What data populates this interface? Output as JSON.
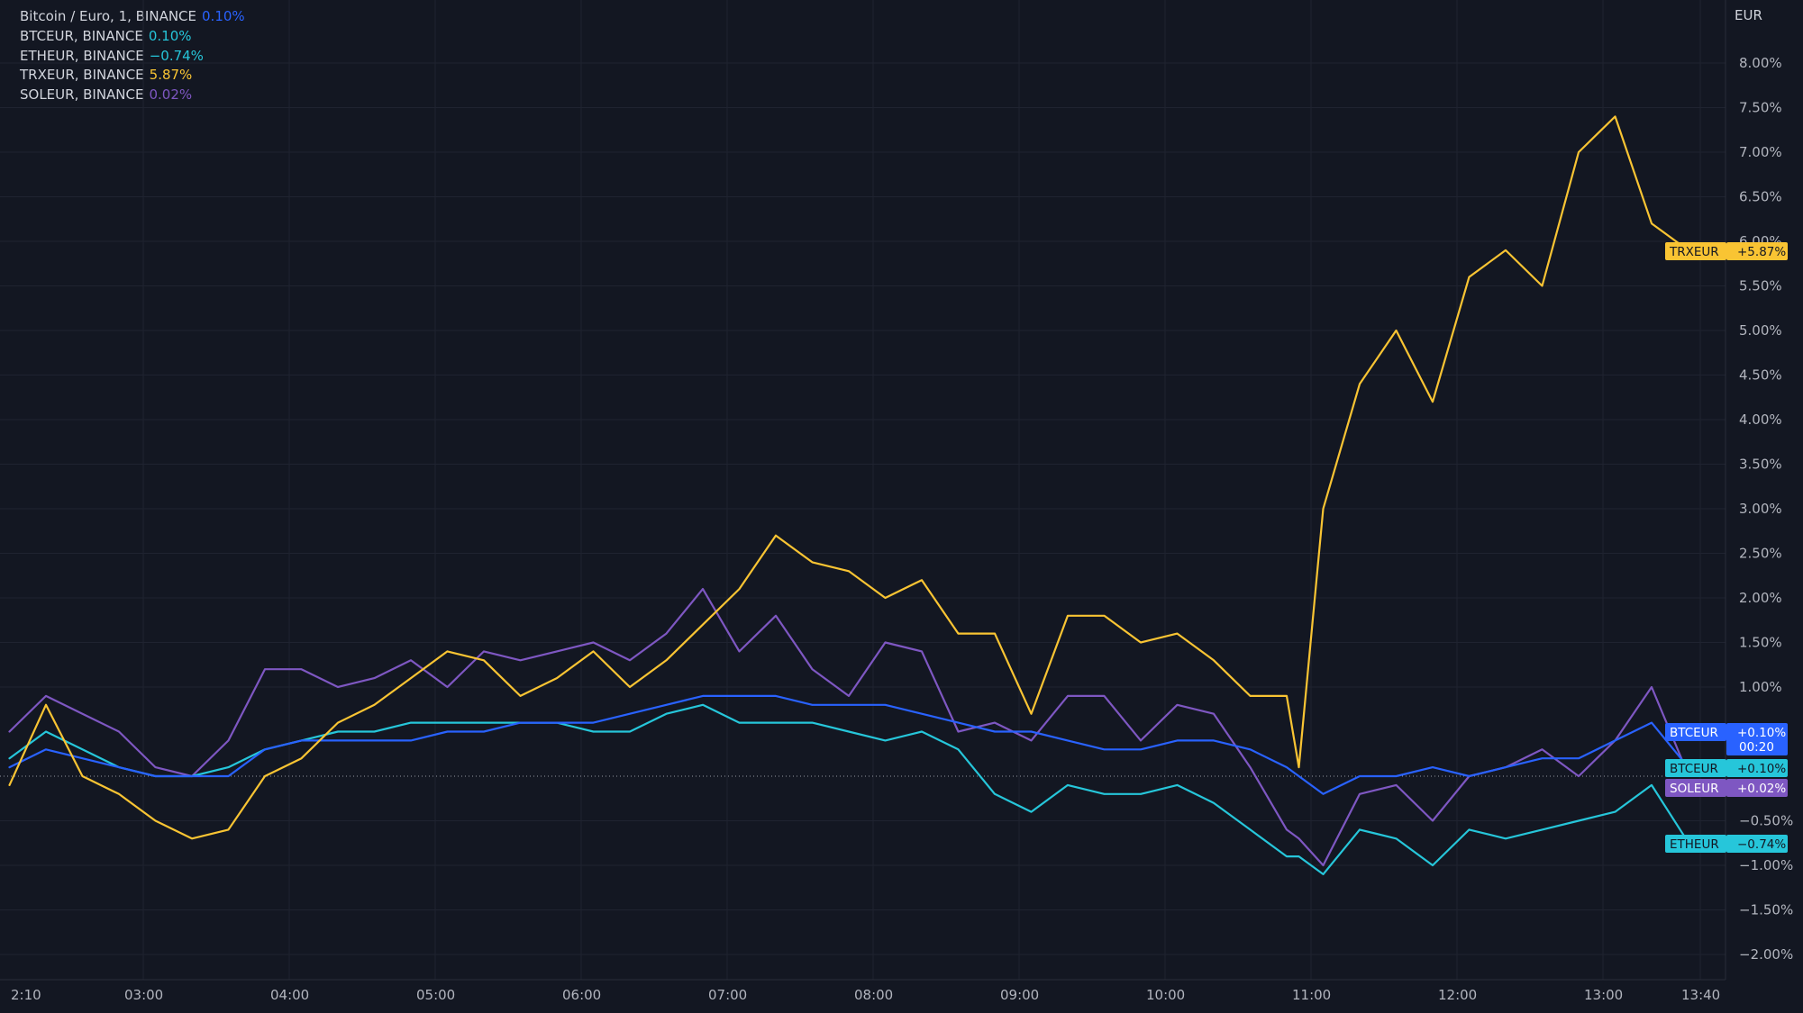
{
  "legend": [
    {
      "name": "Bitcoin / Euro, 1, BINANCE",
      "value": "0.10%",
      "color": "#2962ff"
    },
    {
      "name": "BTCEUR, BINANCE",
      "value": "0.10%",
      "color": "#26c6da"
    },
    {
      "name": "ETHEUR, BINANCE",
      "value": "−0.74%",
      "color": "#26c6da"
    },
    {
      "name": "TRXEUR, BINANCE",
      "value": "5.87%",
      "color": "#f9c433"
    },
    {
      "name": "SOLEUR, BINANCE",
      "value": "0.02%",
      "color": "#7e57c2"
    }
  ],
  "chart_data": {
    "type": "line",
    "ylabel": "EUR",
    "ylim": [
      -2.3,
      8.6
    ],
    "xlim": [
      "02:05",
      "13:50"
    ],
    "grid": true,
    "y_ticks": [
      {
        "value": 8.0,
        "label": "8.00%"
      },
      {
        "value": 7.5,
        "label": "7.50%"
      },
      {
        "value": 7.0,
        "label": "7.00%"
      },
      {
        "value": 6.5,
        "label": "6.50%"
      },
      {
        "value": 6.0,
        "label": "6.00%"
      },
      {
        "value": 5.5,
        "label": "5.50%"
      },
      {
        "value": 5.0,
        "label": "5.00%"
      },
      {
        "value": 4.5,
        "label": "4.50%"
      },
      {
        "value": 4.0,
        "label": "4.00%"
      },
      {
        "value": 3.5,
        "label": "3.50%"
      },
      {
        "value": 3.0,
        "label": "3.00%"
      },
      {
        "value": 2.5,
        "label": "2.50%"
      },
      {
        "value": 2.0,
        "label": "2.00%"
      },
      {
        "value": 1.5,
        "label": "1.50%"
      },
      {
        "value": 1.0,
        "label": "1.00%"
      },
      {
        "value": -0.5,
        "label": "−0.50%"
      },
      {
        "value": -1.0,
        "label": "−1.00%"
      },
      {
        "value": -1.5,
        "label": "−1.50%"
      },
      {
        "value": -2.0,
        "label": "−2.00%"
      }
    ],
    "x_ticks": [
      "02:10",
      "03:00",
      "04:00",
      "05:00",
      "06:00",
      "07:00",
      "08:00",
      "09:00",
      "10:00",
      "11:00",
      "12:00",
      "13:00",
      "13:40"
    ],
    "x_tick_labels": [
      "2:10",
      "03:00",
      "04:00",
      "05:00",
      "06:00",
      "07:00",
      "08:00",
      "09:00",
      "10:00",
      "11:00",
      "12:00",
      "13:00",
      "13:40"
    ],
    "x": [
      "02:05",
      "02:20",
      "02:35",
      "02:50",
      "03:05",
      "03:20",
      "03:35",
      "03:50",
      "04:05",
      "04:20",
      "04:35",
      "04:50",
      "05:05",
      "05:20",
      "05:35",
      "05:50",
      "06:05",
      "06:20",
      "06:35",
      "06:50",
      "07:05",
      "07:20",
      "07:35",
      "07:50",
      "08:05",
      "08:20",
      "08:35",
      "08:50",
      "09:05",
      "09:20",
      "09:35",
      "09:50",
      "10:05",
      "10:20",
      "10:35",
      "10:50",
      "10:55",
      "11:05",
      "11:20",
      "11:35",
      "11:50",
      "12:05",
      "12:20",
      "12:35",
      "12:50",
      "13:05",
      "13:20",
      "13:35"
    ],
    "series": [
      {
        "name": "TRXEUR",
        "color": "#f9c433",
        "values": [
          -0.1,
          0.8,
          0.0,
          -0.2,
          -0.5,
          -0.7,
          -0.6,
          0.0,
          0.2,
          0.6,
          0.8,
          1.1,
          1.4,
          1.3,
          0.9,
          1.1,
          1.4,
          1.0,
          1.3,
          1.7,
          2.1,
          2.7,
          2.4,
          2.3,
          2.0,
          2.2,
          1.6,
          1.6,
          0.7,
          1.8,
          1.8,
          1.5,
          1.6,
          1.3,
          0.9,
          0.9,
          0.1,
          3.0,
          4.4,
          5.0,
          4.2,
          5.6,
          5.9,
          5.5,
          7.0,
          7.4,
          6.2,
          5.9
        ]
      },
      {
        "name": "BTCEUR",
        "color": "#2962ff",
        "values": [
          0.1,
          0.3,
          0.2,
          0.1,
          0.0,
          0.0,
          0.0,
          0.3,
          0.4,
          0.4,
          0.4,
          0.4,
          0.5,
          0.5,
          0.6,
          0.6,
          0.6,
          0.7,
          0.8,
          0.9,
          0.9,
          0.9,
          0.8,
          0.8,
          0.8,
          0.7,
          0.6,
          0.5,
          0.5,
          0.4,
          0.3,
          0.3,
          0.4,
          0.4,
          0.3,
          0.1,
          0.0,
          -0.2,
          0.0,
          0.0,
          0.1,
          0.0,
          0.1,
          0.2,
          0.2,
          0.4,
          0.6,
          0.1
        ]
      },
      {
        "name": "ETHEUR",
        "color": "#26c6da",
        "values": [
          0.2,
          0.5,
          0.3,
          0.1,
          0.0,
          0.0,
          0.1,
          0.3,
          0.4,
          0.5,
          0.5,
          0.6,
          0.6,
          0.6,
          0.6,
          0.6,
          0.5,
          0.5,
          0.7,
          0.8,
          0.6,
          0.6,
          0.6,
          0.5,
          0.4,
          0.5,
          0.3,
          -0.2,
          -0.4,
          -0.1,
          -0.2,
          -0.2,
          -0.1,
          -0.3,
          -0.6,
          -0.9,
          -0.9,
          -1.1,
          -0.6,
          -0.7,
          -1.0,
          -0.6,
          -0.7,
          -0.6,
          -0.5,
          -0.4,
          -0.1,
          -0.74
        ]
      },
      {
        "name": "SOLEUR",
        "color": "#7e57c2",
        "values": [
          0.5,
          0.9,
          0.7,
          0.5,
          0.1,
          0.0,
          0.4,
          1.2,
          1.2,
          1.0,
          1.1,
          1.3,
          1.0,
          1.4,
          1.3,
          1.4,
          1.5,
          1.3,
          1.6,
          2.1,
          1.4,
          1.8,
          1.2,
          0.9,
          1.5,
          1.4,
          0.5,
          0.6,
          0.4,
          0.9,
          0.9,
          0.4,
          0.8,
          0.7,
          0.1,
          -0.6,
          -0.7,
          -1.0,
          -0.2,
          -0.1,
          -0.5,
          0.0,
          0.1,
          0.3,
          0.0,
          0.4,
          1.0,
          0.02
        ]
      }
    ],
    "price_tags": [
      {
        "label": "TRXEUR",
        "value": "+5.87%",
        "at": 5.87,
        "color": "#f9c433",
        "text_color": "#131722",
        "name_bg": "#f9c433"
      },
      {
        "label": "BTCEUR",
        "value": "+0.10%",
        "at": 0.4,
        "color": "#2962ff",
        "text_color": "#ffffff",
        "name_bg": "#2962ff",
        "sub": "00:20"
      },
      {
        "label": "BTCEUR",
        "value": "+0.10%",
        "at": 0.1,
        "color": "#26c6da",
        "text_color": "#131722",
        "name_bg": "#26c6da"
      },
      {
        "label": "SOLEUR",
        "value": "+0.02%",
        "at": -0.12,
        "color": "#7e57c2",
        "text_color": "#ffffff",
        "name_bg": "#7e57c2"
      },
      {
        "label": "ETHEUR",
        "value": "−0.74%",
        "at": -0.74,
        "color": "#26c6da",
        "text_color": "#131722",
        "name_bg": "#26c6da"
      }
    ],
    "colors": {
      "background": "#131722",
      "grid": "#1f2330",
      "axis_text": "#b2b5be",
      "zero_line": "#9598a1"
    }
  }
}
